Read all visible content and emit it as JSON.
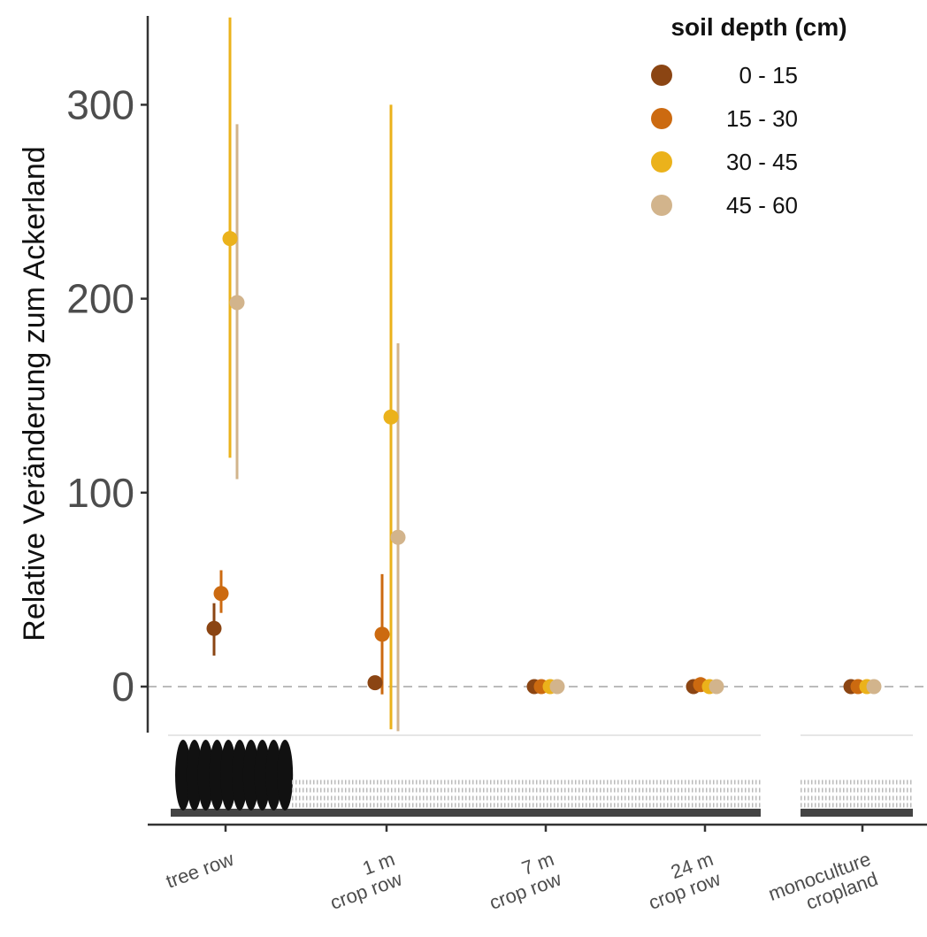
{
  "chart_data": {
    "type": "scatter",
    "ylabel": "Relative Veränderung zum Ackerland",
    "xlabel": "",
    "ylim": [
      -23,
      345
    ],
    "yticks": [
      0,
      100,
      200,
      300
    ],
    "reference_line_y": 0,
    "categories": [
      [
        "tree row"
      ],
      [
        "1 m",
        "crop row"
      ],
      [
        "7 m",
        "crop row"
      ],
      [
        "24 m",
        "crop row"
      ],
      [
        "monoculture",
        "cropland"
      ]
    ],
    "legend": {
      "title": "soil depth (cm)",
      "position": "top-right"
    },
    "series": [
      {
        "name": "0 - 15",
        "color": "#8B4513",
        "values": [
          30,
          2,
          0,
          0,
          0
        ],
        "lower": [
          16,
          null,
          null,
          null,
          null
        ],
        "upper": [
          43,
          null,
          null,
          null,
          null
        ]
      },
      {
        "name": "15 - 30",
        "color": "#CC6A10",
        "values": [
          48,
          27,
          0,
          1,
          0
        ],
        "lower": [
          38,
          -4,
          null,
          null,
          null
        ],
        "upper": [
          60,
          58,
          null,
          null,
          null
        ]
      },
      {
        "name": "30 - 45",
        "color": "#EBB21B",
        "values": [
          231,
          139,
          0,
          0,
          0
        ],
        "lower": [
          118,
          -22,
          null,
          null,
          null
        ],
        "upper": [
          345,
          300,
          null,
          null,
          null
        ]
      },
      {
        "name": "45 - 60",
        "color": "#D2B48C",
        "values": [
          198,
          77,
          0,
          0,
          0
        ],
        "lower": [
          107,
          -23,
          null,
          null,
          null
        ],
        "upper": [
          290,
          177,
          null,
          null,
          null
        ]
      }
    ]
  }
}
